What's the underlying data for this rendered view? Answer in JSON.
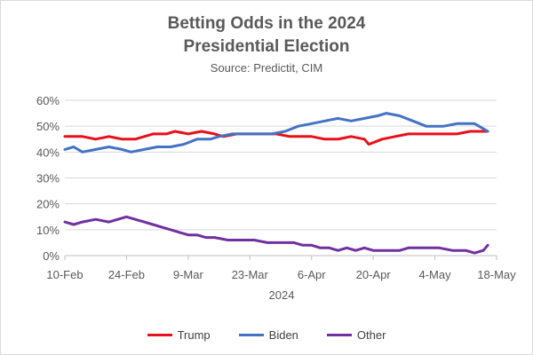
{
  "chart_data": {
    "type": "line",
    "title_line1": "Betting Odds in the 2024",
    "title_line2": "Presidential Election",
    "subtitle": "Source: Predictit, CIM",
    "xlabel": "2024",
    "ylabel": "",
    "ylim": [
      0,
      60
    ],
    "yticks": [
      "0%",
      "10%",
      "20%",
      "30%",
      "40%",
      "50%",
      "60%"
    ],
    "x_start": "10-Feb",
    "x_end": "18-May",
    "xticks": [
      "10-Feb",
      "24-Feb",
      "9-Mar",
      "23-Mar",
      "6-Apr",
      "20-Apr",
      "4-May",
      "18-May"
    ],
    "grid": true,
    "legend_position": "bottom",
    "series": [
      {
        "name": "Trump",
        "color": "#e8101a",
        "points": [
          [
            "10-Feb",
            46
          ],
          [
            "14-Feb",
            46
          ],
          [
            "17-Feb",
            45
          ],
          [
            "20-Feb",
            46
          ],
          [
            "23-Feb",
            45
          ],
          [
            "26-Feb",
            45
          ],
          [
            "1-Mar",
            47
          ],
          [
            "4-Mar",
            47
          ],
          [
            "6-Mar",
            48
          ],
          [
            "9-Mar",
            47
          ],
          [
            "12-Mar",
            48
          ],
          [
            "15-Mar",
            47
          ],
          [
            "17-Mar",
            46
          ],
          [
            "20-Mar",
            47
          ],
          [
            "23-Mar",
            47
          ],
          [
            "26-Mar",
            47
          ],
          [
            "29-Mar",
            47
          ],
          [
            "1-Apr",
            46
          ],
          [
            "4-Apr",
            46
          ],
          [
            "6-Apr",
            46
          ],
          [
            "9-Apr",
            45
          ],
          [
            "12-Apr",
            45
          ],
          [
            "15-Apr",
            46
          ],
          [
            "18-Apr",
            45
          ],
          [
            "19-Apr",
            43
          ],
          [
            "22-Apr",
            45
          ],
          [
            "25-Apr",
            46
          ],
          [
            "28-Apr",
            47
          ],
          [
            "2-May",
            47
          ],
          [
            "6-May",
            47
          ],
          [
            "9-May",
            47
          ],
          [
            "12-May",
            48
          ],
          [
            "14-May",
            48
          ],
          [
            "16-May",
            48
          ]
        ]
      },
      {
        "name": "Biden",
        "color": "#4472c4",
        "points": [
          [
            "10-Feb",
            41
          ],
          [
            "12-Feb",
            42
          ],
          [
            "14-Feb",
            40
          ],
          [
            "17-Feb",
            41
          ],
          [
            "20-Feb",
            42
          ],
          [
            "23-Feb",
            41
          ],
          [
            "25-Feb",
            40
          ],
          [
            "28-Feb",
            41
          ],
          [
            "2-Mar",
            42
          ],
          [
            "5-Mar",
            42
          ],
          [
            "8-Mar",
            43
          ],
          [
            "11-Mar",
            45
          ],
          [
            "14-Mar",
            45
          ],
          [
            "16-Mar",
            46
          ],
          [
            "19-Mar",
            47
          ],
          [
            "22-Mar",
            47
          ],
          [
            "25-Mar",
            47
          ],
          [
            "28-Mar",
            47
          ],
          [
            "31-Mar",
            48
          ],
          [
            "3-Apr",
            50
          ],
          [
            "6-Apr",
            51
          ],
          [
            "9-Apr",
            52
          ],
          [
            "12-Apr",
            53
          ],
          [
            "15-Apr",
            52
          ],
          [
            "18-Apr",
            53
          ],
          [
            "21-Apr",
            54
          ],
          [
            "23-Apr",
            55
          ],
          [
            "26-Apr",
            54
          ],
          [
            "29-Apr",
            52
          ],
          [
            "2-May",
            50
          ],
          [
            "6-May",
            50
          ],
          [
            "9-May",
            51
          ],
          [
            "13-May",
            51
          ],
          [
            "15-May",
            49
          ],
          [
            "16-May",
            48
          ]
        ]
      },
      {
        "name": "Other",
        "color": "#7030a0",
        "points": [
          [
            "10-Feb",
            13
          ],
          [
            "12-Feb",
            12
          ],
          [
            "14-Feb",
            13
          ],
          [
            "17-Feb",
            14
          ],
          [
            "20-Feb",
            13
          ],
          [
            "22-Feb",
            14
          ],
          [
            "24-Feb",
            15
          ],
          [
            "26-Feb",
            14
          ],
          [
            "28-Feb",
            13
          ],
          [
            "1-Mar",
            12
          ],
          [
            "3-Mar",
            11
          ],
          [
            "5-Mar",
            10
          ],
          [
            "7-Mar",
            9
          ],
          [
            "9-Mar",
            8
          ],
          [
            "11-Mar",
            8
          ],
          [
            "13-Mar",
            7
          ],
          [
            "15-Mar",
            7
          ],
          [
            "18-Mar",
            6
          ],
          [
            "21-Mar",
            6
          ],
          [
            "24-Mar",
            6
          ],
          [
            "27-Mar",
            5
          ],
          [
            "30-Mar",
            5
          ],
          [
            "2-Apr",
            5
          ],
          [
            "4-Apr",
            4
          ],
          [
            "6-Apr",
            4
          ],
          [
            "8-Apr",
            3
          ],
          [
            "10-Apr",
            3
          ],
          [
            "12-Apr",
            2
          ],
          [
            "14-Apr",
            3
          ],
          [
            "16-Apr",
            2
          ],
          [
            "18-Apr",
            3
          ],
          [
            "20-Apr",
            2
          ],
          [
            "22-Apr",
            2
          ],
          [
            "24-Apr",
            2
          ],
          [
            "26-Apr",
            2
          ],
          [
            "28-Apr",
            3
          ],
          [
            "2-May",
            3
          ],
          [
            "5-May",
            3
          ],
          [
            "8-May",
            2
          ],
          [
            "11-May",
            2
          ],
          [
            "13-May",
            1
          ],
          [
            "15-May",
            2
          ],
          [
            "16-May",
            4
          ]
        ]
      }
    ]
  }
}
